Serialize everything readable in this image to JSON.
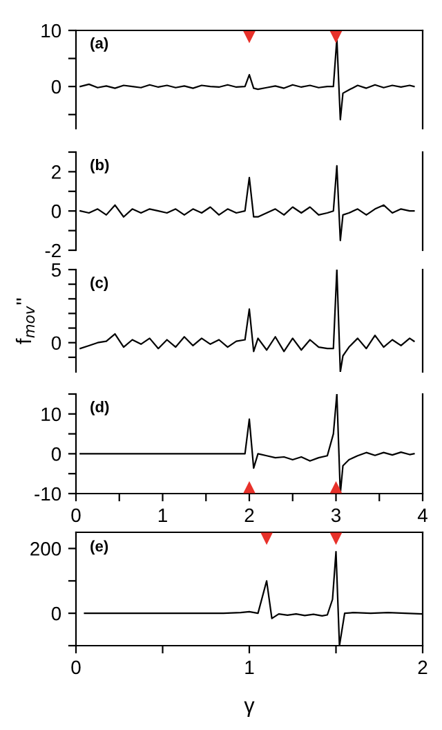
{
  "chart_data": [
    {
      "type": "line",
      "annotations": [
        "(a)"
      ],
      "xlim": [
        0,
        4
      ],
      "ylim": [
        -7.5,
        10
      ],
      "yticks": [
        {
          "value": -5,
          "label": null
        },
        0,
        {
          "value": 5,
          "label": null
        },
        10
      ],
      "tick_labels": "y",
      "series": [
        {
          "color": "#000000",
          "x": [
            0.05,
            0.15,
            0.25,
            0.35,
            0.45,
            0.55,
            0.65,
            0.75,
            0.85,
            0.95,
            1.05,
            1.15,
            1.25,
            1.35,
            1.45,
            1.55,
            1.65,
            1.75,
            1.85,
            1.95,
            2.0,
            2.05,
            2.1,
            2.2,
            2.3,
            2.4,
            2.5,
            2.6,
            2.7,
            2.8,
            2.9,
            2.97,
            3.01,
            3.05,
            3.08,
            3.15,
            3.25,
            3.35,
            3.45,
            3.55,
            3.65,
            3.75,
            3.85,
            3.9
          ],
          "values": [
            0,
            0.4,
            -0.2,
            0.1,
            -0.3,
            0.2,
            0,
            -0.2,
            0.3,
            -0.1,
            0.2,
            -0.2,
            0.1,
            -0.3,
            0.2,
            0,
            -0.1,
            0.3,
            -0.1,
            0,
            2.1,
            -0.3,
            -0.5,
            -0.2,
            0.1,
            -0.3,
            0.3,
            -0.1,
            0.2,
            -0.2,
            0,
            0,
            8.5,
            -5.9,
            -1.2,
            -0.6,
            0.2,
            -0.3,
            0.3,
            -0.2,
            0.2,
            -0.1,
            0.2,
            0
          ]
        },
        {
          "type": "scatter",
          "marker": "triangle",
          "color": "#e8312a",
          "x": [
            2,
            3
          ],
          "values": [
            8.8,
            8.8
          ]
        }
      ]
    },
    {
      "type": "line",
      "annotations": [
        "(b)"
      ],
      "xlim": [
        0,
        4
      ],
      "ylim": [
        -2,
        3
      ],
      "yticks": [
        -2,
        {
          "value": -1,
          "label": null
        },
        0,
        {
          "value": 1,
          "label": null
        },
        2,
        {
          "value": 3,
          "label": null
        }
      ],
      "tick_labels": "y",
      "series": [
        {
          "color": "#000000",
          "x": [
            0.05,
            0.15,
            0.25,
            0.35,
            0.45,
            0.55,
            0.65,
            0.75,
            0.85,
            0.95,
            1.05,
            1.15,
            1.25,
            1.35,
            1.45,
            1.55,
            1.65,
            1.75,
            1.85,
            1.95,
            2.0,
            2.05,
            2.1,
            2.2,
            2.3,
            2.4,
            2.5,
            2.6,
            2.7,
            2.8,
            2.9,
            2.97,
            3.01,
            3.05,
            3.08,
            3.15,
            3.25,
            3.35,
            3.45,
            3.55,
            3.65,
            3.75,
            3.85,
            3.9
          ],
          "values": [
            0,
            -0.1,
            0.1,
            -0.2,
            0.3,
            -0.3,
            0.1,
            -0.1,
            0.1,
            0,
            -0.1,
            0.1,
            -0.2,
            0.1,
            -0.1,
            0.2,
            -0.2,
            0.1,
            -0.1,
            0,
            1.7,
            -0.3,
            -0.3,
            -0.1,
            0.1,
            -0.2,
            0.2,
            -0.1,
            0.2,
            -0.2,
            -0.1,
            0,
            2.3,
            -1.5,
            -0.2,
            -0.1,
            0.1,
            -0.2,
            0.1,
            0.3,
            -0.1,
            0.1,
            0,
            0
          ]
        }
      ]
    },
    {
      "type": "line",
      "annotations": [
        "(c)"
      ],
      "ylabel": "f$_{mov}$''",
      "xlim": [
        0,
        4
      ],
      "ylim": [
        -2,
        5
      ],
      "yticks": [
        {
          "value": -1,
          "label": null
        },
        0,
        {
          "value": 1,
          "label": null
        },
        {
          "value": 2,
          "label": null
        },
        {
          "value": 3,
          "label": null
        },
        {
          "value": 4,
          "label": null
        },
        5
      ],
      "tick_labels": "y",
      "series": [
        {
          "color": "#000000",
          "x": [
            0.05,
            0.15,
            0.25,
            0.35,
            0.45,
            0.55,
            0.65,
            0.75,
            0.85,
            0.95,
            1.05,
            1.15,
            1.25,
            1.35,
            1.45,
            1.55,
            1.65,
            1.75,
            1.85,
            1.95,
            2.0,
            2.05,
            2.1,
            2.2,
            2.3,
            2.4,
            2.5,
            2.6,
            2.7,
            2.8,
            2.9,
            2.97,
            3.01,
            3.05,
            3.08,
            3.15,
            3.25,
            3.35,
            3.45,
            3.55,
            3.65,
            3.75,
            3.85,
            3.9
          ],
          "values": [
            -0.4,
            -0.2,
            0,
            0.1,
            0.6,
            -0.3,
            0.2,
            -0.1,
            0.3,
            -0.4,
            0.2,
            -0.3,
            0.4,
            -0.2,
            0.3,
            -0.1,
            0.2,
            -0.3,
            0.1,
            0.2,
            2.3,
            -0.6,
            0.3,
            -0.5,
            0.4,
            -0.6,
            0.3,
            -0.5,
            0.2,
            -0.3,
            -0.4,
            -0.4,
            5,
            -2,
            -0.9,
            -0.3,
            0.3,
            -0.4,
            0.5,
            -0.3,
            0.2,
            -0.2,
            0.3,
            0.1
          ]
        }
      ]
    },
    {
      "type": "line",
      "annotations": [
        "(d)"
      ],
      "xlim": [
        0,
        4
      ],
      "ylim": [
        -10,
        15
      ],
      "xticks": [
        0,
        {
          "value": 0.5,
          "label": null
        },
        1,
        {
          "value": 1.5,
          "label": null
        },
        2,
        {
          "value": 2.5,
          "label": null
        },
        3,
        {
          "value": 3.5,
          "label": null
        },
        4
      ],
      "yticks": [
        -10,
        {
          "value": -5,
          "label": null
        },
        0,
        {
          "value": 5,
          "label": null
        },
        10,
        {
          "value": 15,
          "label": null
        }
      ],
      "series": [
        {
          "color": "#000000",
          "x": [
            0.05,
            0.15,
            0.25,
            0.35,
            0.45,
            0.55,
            0.65,
            0.75,
            0.85,
            0.95,
            1.05,
            1.15,
            1.25,
            1.35,
            1.45,
            1.55,
            1.65,
            1.75,
            1.85,
            1.95,
            2.0,
            2.05,
            2.1,
            2.2,
            2.3,
            2.4,
            2.5,
            2.6,
            2.7,
            2.8,
            2.9,
            2.97,
            3.01,
            3.05,
            3.08,
            3.15,
            3.25,
            3.35,
            3.45,
            3.55,
            3.65,
            3.75,
            3.85,
            3.9
          ],
          "values": [
            0,
            0,
            0,
            0,
            0,
            0,
            0,
            0,
            0,
            0,
            0,
            0,
            0,
            0,
            0,
            0,
            0,
            0,
            0,
            0,
            8.7,
            -3.6,
            0,
            -0.5,
            -1,
            -0.8,
            -1.5,
            -0.8,
            -1.8,
            -1,
            -0.5,
            5,
            15,
            -10,
            -3,
            -1.5,
            -0.5,
            0.3,
            -0.4,
            0.3,
            -0.3,
            0.4,
            -0.2,
            0
          ]
        },
        {
          "type": "scatter",
          "marker": "triangle",
          "color": "#e8312a",
          "x": [
            2,
            3
          ],
          "values": [
            -8.4,
            -8.4
          ]
        }
      ]
    },
    {
      "type": "line",
      "annotations": [
        "(e)"
      ],
      "xlabel": "γ",
      "xlim": [
        0,
        2
      ],
      "ylim": [
        -100,
        250
      ],
      "xticks": [
        0,
        {
          "value": 0.5,
          "label": null
        },
        1,
        {
          "value": 1.5,
          "label": null
        },
        2
      ],
      "yticks": [
        {
          "value": -100,
          "label": null
        },
        0,
        {
          "value": 100,
          "label": null
        },
        200
      ],
      "series": [
        {
          "color": "#000000",
          "x": [
            0.05,
            0.15,
            0.25,
            0.35,
            0.45,
            0.55,
            0.65,
            0.75,
            0.85,
            0.95,
            1.0,
            1.05,
            1.1,
            1.13,
            1.17,
            1.22,
            1.27,
            1.32,
            1.37,
            1.42,
            1.45,
            1.48,
            1.5,
            1.52,
            1.55,
            1.6,
            1.7,
            1.8,
            1.9,
            2.0
          ],
          "values": [
            0,
            0,
            0,
            0,
            0,
            0,
            0,
            0,
            0,
            2,
            5,
            0,
            100,
            -16,
            -2,
            -6,
            -2,
            -7,
            -3,
            -8,
            -5,
            43,
            190,
            -100,
            0,
            2,
            0,
            2,
            0,
            -2
          ]
        },
        {
          "type": "scatter",
          "marker": "triangle",
          "color": "#e8312a",
          "x": [
            1.1,
            1.5
          ],
          "values": [
            230,
            230
          ]
        }
      ]
    }
  ]
}
